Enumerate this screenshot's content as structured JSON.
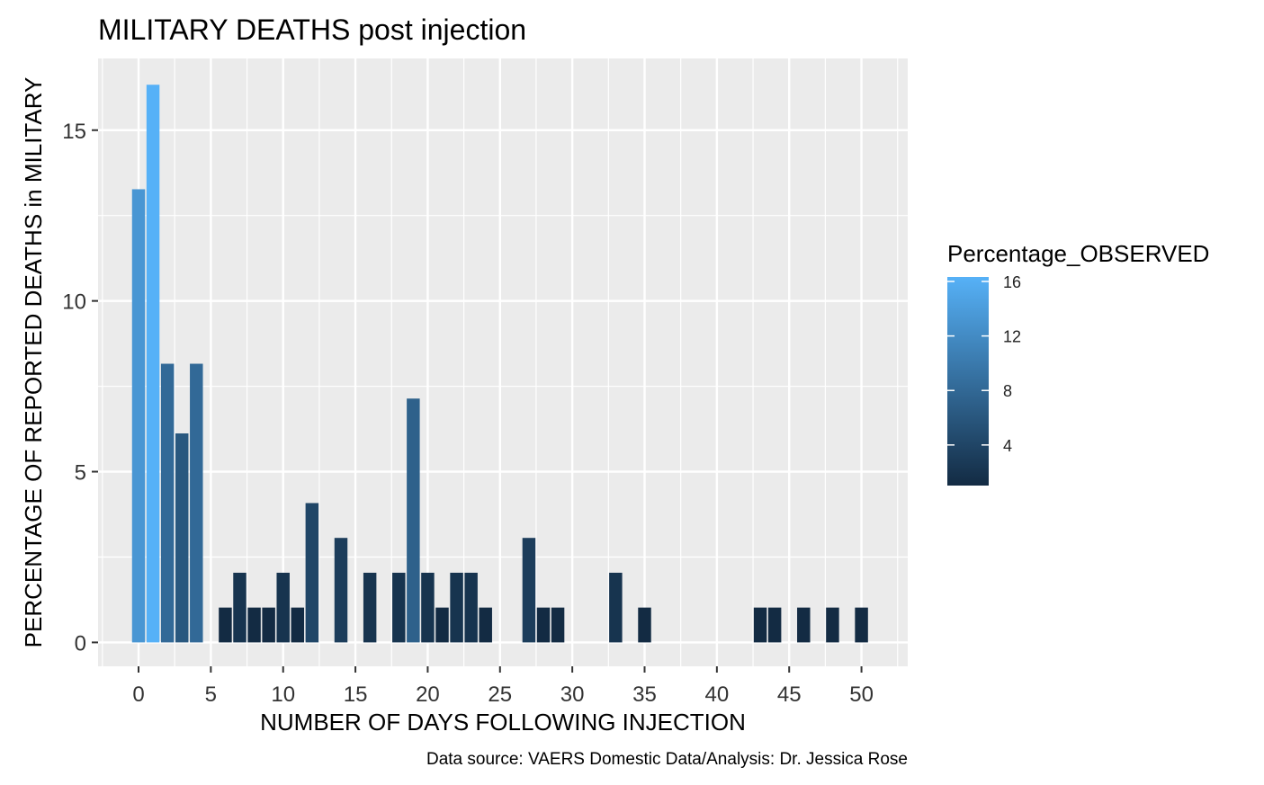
{
  "chart_data": {
    "type": "bar",
    "title": "MILITARY DEATHS post injection",
    "xlabel": "NUMBER OF DAYS FOLLOWING INJECTION",
    "ylabel": "PERCENTAGE OF REPORTED DEATHS in MILITARY",
    "caption": "Data source: VAERS Domestic Data/Analysis: Dr. Jessica Rose",
    "xlim": [
      -2.8,
      53.2
    ],
    "ylim": [
      -0.7,
      17.1
    ],
    "x_ticks": [
      0,
      5,
      10,
      15,
      20,
      25,
      30,
      35,
      40,
      45,
      50
    ],
    "x_tick_labels": [
      "0",
      "5",
      "10",
      "15",
      "20",
      "25",
      "30",
      "35",
      "40",
      "45",
      "50"
    ],
    "y_ticks": [
      0,
      5,
      10,
      15
    ],
    "y_tick_labels": [
      "0",
      "5",
      "10",
      "15"
    ],
    "x": [
      0,
      1,
      2,
      3,
      4,
      6,
      7,
      8,
      9,
      10,
      11,
      12,
      14,
      16,
      18,
      19,
      20,
      21,
      22,
      23,
      24,
      27,
      28,
      29,
      33,
      35,
      43,
      44,
      46,
      48,
      50
    ],
    "values": [
      13.27,
      16.33,
      8.16,
      6.12,
      8.16,
      1.02,
      2.04,
      1.02,
      1.02,
      2.04,
      1.02,
      4.08,
      3.06,
      2.04,
      2.04,
      7.14,
      2.04,
      1.02,
      2.04,
      2.04,
      1.02,
      3.06,
      1.02,
      1.02,
      2.04,
      1.02,
      1.02,
      1.02,
      1.02,
      1.02,
      1.02
    ],
    "grid": true,
    "legend": {
      "title": "Percentage_OBSERVED",
      "position": "right",
      "ticks": [
        4,
        8,
        12,
        16
      ],
      "tick_labels": [
        "4",
        "8",
        "12",
        "16"
      ],
      "range": [
        1.02,
        16.33
      ],
      "low_color": "#132b43",
      "high_color": "#56b1f7"
    },
    "panel_color": "#ebebeb",
    "grid_color": "#ffffff"
  }
}
